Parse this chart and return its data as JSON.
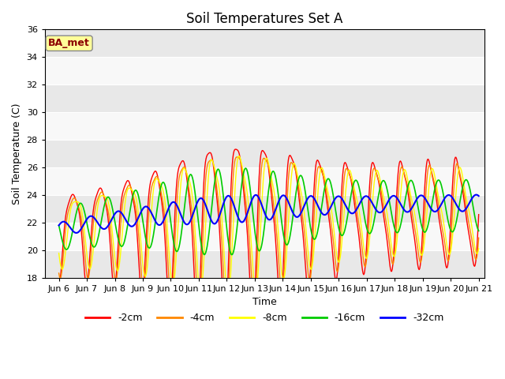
{
  "title": "Soil Temperatures Set A",
  "xlabel": "Time",
  "ylabel": "Soil Temperature (C)",
  "ylim": [
    18,
    36
  ],
  "xlim_days": [
    5.5,
    21.2
  ],
  "xtick_days": [
    6,
    7,
    8,
    9,
    10,
    11,
    12,
    13,
    14,
    15,
    16,
    17,
    18,
    19,
    20,
    21
  ],
  "xtick_labels": [
    "Jun 6",
    "Jun 7",
    "Jun 8",
    "Jun 9",
    "Jun 10",
    "Jun 11",
    "Jun 12",
    "Jun 13",
    "Jun 14",
    "Jun 15",
    "Jun 16",
    "Jun 17",
    "Jun 18",
    "Jun 19",
    "Jun 20",
    "Jun 21"
  ],
  "label_text": "BA_met",
  "label_bg": "#FFFF99",
  "label_border": "#888888",
  "label_color": "#8B0000",
  "plot_bg": "#E8E8E8",
  "legend_labels": [
    "-2cm",
    "-4cm",
    "-8cm",
    "-16cm",
    "-32cm"
  ],
  "line_colors": [
    "#FF0000",
    "#FF8800",
    "#FFFF00",
    "#00CC00",
    "#0000FF"
  ],
  "line_widths": [
    1.0,
    1.0,
    1.0,
    1.2,
    1.5
  ],
  "title_fontsize": 12,
  "axis_fontsize": 9,
  "tick_fontsize": 8
}
